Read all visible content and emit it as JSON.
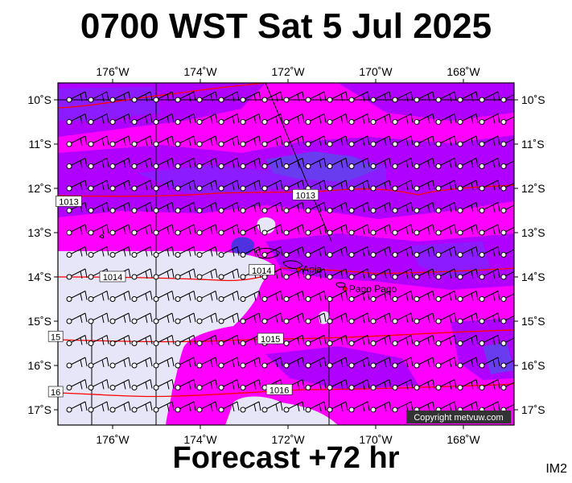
{
  "title": "0700 WST Sat 5 Jul 2025",
  "footer": "Forecast +72 hr",
  "image_code": "IM2",
  "copyright": "Copyright metvuw.com",
  "colors": {
    "land": "#e6e6f8",
    "wind_magenta": "#ff00ff",
    "wind_violet": "#b000ff",
    "wind_purple": "#8c1cff",
    "wind_blue": "#6a3cf0",
    "wind_deep": "#5030e0",
    "isobar": "#ff0000"
  },
  "axes": {
    "lon_labels": [
      "176˚W",
      "174˚W",
      "172˚W",
      "170˚W",
      "168˚W"
    ],
    "lon_values": [
      -176,
      -174,
      -172,
      -170,
      -168
    ],
    "lat_labels": [
      "10˚S",
      "11˚S",
      "12˚S",
      "13˚S",
      "14˚S",
      "15˚S",
      "16˚S",
      "17˚S"
    ],
    "lat_values": [
      -10,
      -11,
      -12,
      -13,
      -14,
      -15,
      -16,
      -17
    ]
  },
  "isobars": [
    {
      "label": "1013",
      "lat": -12.3,
      "lon": -177.0
    },
    {
      "label": "1013",
      "lat": -12.15,
      "lon": -171.6
    },
    {
      "label": "1014",
      "lat": -13.85,
      "lon": -172.6
    },
    {
      "label": "1014",
      "lat": -14.0,
      "lon": -176.0
    },
    {
      "label": "1015",
      "lat": -15.4,
      "lon": -172.4
    },
    {
      "label": "15",
      "lat": -15.35,
      "lon": -177.3
    },
    {
      "label": "1016",
      "lat": -16.55,
      "lon": -172.2
    },
    {
      "label": "16",
      "lat": -16.6,
      "lon": -177.3
    }
  ],
  "places": [
    {
      "name": "Apia",
      "lat": -13.83,
      "lon": -171.76
    },
    {
      "name": "Pago Pago",
      "lat": -14.27,
      "lon": -170.7
    }
  ]
}
